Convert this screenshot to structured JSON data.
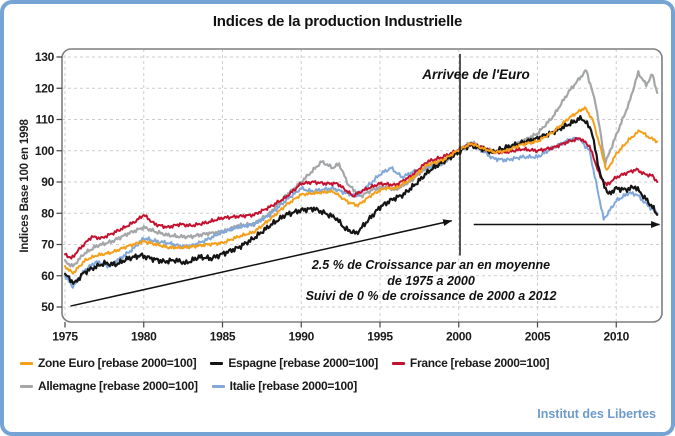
{
  "title": "Indices de la production Industrielle",
  "footer": {
    "text": "Institut des Libertes"
  },
  "colors": {
    "frame_border": "#75A3D3",
    "plot_border": "#7F7F7F",
    "gridline": "#CDCDCD",
    "tick": "#444444",
    "annotation": "#111111",
    "footer_text": "#6D9BCB"
  },
  "chart_data": {
    "type": "line",
    "title": "Indices de la production Industrielle",
    "xlabel": "",
    "ylabel": "Indices Base 100 en 1998",
    "xlim": [
      1974.8,
      2012.9
    ],
    "ylim": [
      50,
      130
    ],
    "x_ticks": [
      1975,
      1980,
      1985,
      1990,
      1995,
      2000,
      2005,
      2010
    ],
    "y_ticks": [
      50,
      60,
      70,
      80,
      90,
      100,
      110,
      120,
      130
    ],
    "grid": "dashed",
    "legend_position": "bottom",
    "legend_rows": [
      [
        0,
        1,
        2
      ],
      [
        3,
        4
      ]
    ],
    "annotations": {
      "euro_label": "Arrivee de l'Euro",
      "euro_line_year": 2000.08,
      "euro_line_values": [
        131,
        66.5
      ],
      "growth_lines": [
        "2.5 % de Croissance par an en moyenne",
        "de 1975  a 2000",
        "Suivi de 0 % de croissance de  2000 a 2012"
      ],
      "arrows": [
        {
          "from": [
            1975.35,
            50.3
          ],
          "to": [
            1999.55,
            77.6
          ]
        },
        {
          "from": [
            2000.95,
            76.4
          ],
          "to": [
            2012.75,
            76.4
          ]
        }
      ]
    },
    "series": [
      {
        "key": "zone-euro",
        "name": "Zone Euro [rebase 2000=100]",
        "color": "#F5A01B",
        "z": 5,
        "jitter": 0.55,
        "points": [
          [
            1975.0,
            63
          ],
          [
            1975.5,
            60.8
          ],
          [
            1976.3,
            65
          ],
          [
            1977,
            66.5
          ],
          [
            1978,
            67.5
          ],
          [
            1979,
            69.5
          ],
          [
            1980,
            71
          ],
          [
            1980.8,
            70
          ],
          [
            1981.6,
            69
          ],
          [
            1982.4,
            69
          ],
          [
            1983.2,
            69.4
          ],
          [
            1984,
            70
          ],
          [
            1985,
            70.5
          ],
          [
            1986,
            72.5
          ],
          [
            1987,
            74
          ],
          [
            1988,
            78
          ],
          [
            1989,
            82.5
          ],
          [
            1990,
            86
          ],
          [
            1991,
            86.5
          ],
          [
            1992,
            87
          ],
          [
            1993,
            83.5
          ],
          [
            1993.6,
            82.5
          ],
          [
            1994.5,
            86
          ],
          [
            1995.3,
            88
          ],
          [
            1996,
            88
          ],
          [
            1997,
            91
          ],
          [
            1998,
            95.5
          ],
          [
            1999,
            97
          ],
          [
            2000,
            100.3
          ],
          [
            2000.8,
            102.3
          ],
          [
            2001.5,
            100.8
          ],
          [
            2002.3,
            99.5
          ],
          [
            2003,
            100
          ],
          [
            2004,
            102
          ],
          [
            2005,
            103
          ],
          [
            2006,
            106
          ],
          [
            2007,
            110.5
          ],
          [
            2008,
            113.8
          ],
          [
            2008.5,
            110
          ],
          [
            2009.4,
            93.5
          ],
          [
            2010,
            99
          ],
          [
            2010.8,
            103.5
          ],
          [
            2011.5,
            106.5
          ],
          [
            2012,
            104.5
          ],
          [
            2012.6,
            103
          ]
        ]
      },
      {
        "key": "espagne",
        "name": "Espagne [rebase 2000=100]",
        "color": "#141414",
        "z": 4,
        "jitter": 0.95,
        "points": [
          [
            1975,
            60.5
          ],
          [
            1975.6,
            57.5
          ],
          [
            1976.2,
            61
          ],
          [
            1976.8,
            62.5
          ],
          [
            1977.5,
            64
          ],
          [
            1978.2,
            63.5
          ],
          [
            1979,
            65.5
          ],
          [
            1979.8,
            66.5
          ],
          [
            1980.5,
            65.5
          ],
          [
            1981.3,
            64.5
          ],
          [
            1982,
            65
          ],
          [
            1982.7,
            64
          ],
          [
            1983.5,
            66
          ],
          [
            1984.3,
            65.5
          ],
          [
            1985,
            67
          ],
          [
            1986,
            69
          ],
          [
            1987,
            72
          ],
          [
            1988,
            76
          ],
          [
            1989,
            79.5
          ],
          [
            1990,
            81
          ],
          [
            1990.8,
            81.5
          ],
          [
            1991.5,
            80
          ],
          [
            1992.2,
            78.5
          ],
          [
            1992.8,
            75
          ],
          [
            1993.5,
            73.5
          ],
          [
            1994.2,
            77.5
          ],
          [
            1995,
            82
          ],
          [
            1995.8,
            84.5
          ],
          [
            1996.5,
            86
          ],
          [
            1997.3,
            89.5
          ],
          [
            1998.1,
            93.5
          ],
          [
            1999,
            96.5
          ],
          [
            2000,
            99.5
          ],
          [
            2000.7,
            102
          ],
          [
            2001.5,
            100.5
          ],
          [
            2002.2,
            99.5
          ],
          [
            2003,
            101
          ],
          [
            2004,
            102.5
          ],
          [
            2005,
            104
          ],
          [
            2006,
            106
          ],
          [
            2007,
            108.5
          ],
          [
            2007.8,
            110.5
          ],
          [
            2008.4,
            107
          ],
          [
            2009,
            92
          ],
          [
            2009.5,
            86
          ],
          [
            2010,
            88
          ],
          [
            2010.6,
            87.5
          ],
          [
            2011.2,
            88.5
          ],
          [
            2011.8,
            85
          ],
          [
            2012.3,
            82
          ],
          [
            2012.6,
            79.5
          ]
        ]
      },
      {
        "key": "france",
        "name": "France [rebase 2000=100]",
        "color": "#C31230",
        "z": 3,
        "jitter": 0.6,
        "points": [
          [
            1975,
            67
          ],
          [
            1975.4,
            65.5
          ],
          [
            1976,
            69
          ],
          [
            1976.7,
            72.5
          ],
          [
            1977.3,
            72
          ],
          [
            1978,
            73.5
          ],
          [
            1978.8,
            75.5
          ],
          [
            1979.5,
            77.5
          ],
          [
            1980,
            79.5
          ],
          [
            1980.7,
            76.5
          ],
          [
            1981.5,
            75.5
          ],
          [
            1982.3,
            76.5
          ],
          [
            1983,
            76
          ],
          [
            1984,
            77
          ],
          [
            1985,
            78.5
          ],
          [
            1986,
            79
          ],
          [
            1987,
            79.5
          ],
          [
            1988,
            82
          ],
          [
            1989,
            85
          ],
          [
            1990,
            89.5
          ],
          [
            1990.8,
            90
          ],
          [
            1991.5,
            89.5
          ],
          [
            1992.3,
            89.5
          ],
          [
            1993.3,
            85.5
          ],
          [
            1994,
            87.5
          ],
          [
            1995,
            89.5
          ],
          [
            1996,
            89
          ],
          [
            1997,
            92
          ],
          [
            1998,
            96.5
          ],
          [
            1999,
            98
          ],
          [
            2000,
            100.3
          ],
          [
            2000.8,
            102.3
          ],
          [
            2001.5,
            101
          ],
          [
            2002.3,
            99.5
          ],
          [
            2003,
            99.5
          ],
          [
            2004,
            100.5
          ],
          [
            2005,
            100
          ],
          [
            2006,
            101
          ],
          [
            2007,
            103
          ],
          [
            2007.7,
            104
          ],
          [
            2008.3,
            101.5
          ],
          [
            2009,
            91.5
          ],
          [
            2009.4,
            89
          ],
          [
            2010,
            91.5
          ],
          [
            2010.7,
            93
          ],
          [
            2011.3,
            94
          ],
          [
            2011.8,
            92.5
          ],
          [
            2012.3,
            92
          ],
          [
            2012.6,
            90
          ]
        ]
      },
      {
        "key": "allemagne",
        "name": "Allemagne [rebase 2000=100]",
        "color": "#A4A6A8",
        "z": 1,
        "jitter": 0.65,
        "points": [
          [
            1975,
            64.5
          ],
          [
            1975.5,
            63
          ],
          [
            1976.2,
            67
          ],
          [
            1977,
            69.5
          ],
          [
            1978,
            71
          ],
          [
            1979,
            73.5
          ],
          [
            1980,
            75.5
          ],
          [
            1980.8,
            74
          ],
          [
            1981.5,
            73
          ],
          [
            1982.3,
            72.5
          ],
          [
            1983,
            72.5
          ],
          [
            1984,
            73.5
          ],
          [
            1985,
            74
          ],
          [
            1986,
            76
          ],
          [
            1987,
            76.5
          ],
          [
            1988,
            80
          ],
          [
            1989,
            85.5
          ],
          [
            1990,
            90
          ],
          [
            1990.7,
            93.5
          ],
          [
            1991.3,
            96.5
          ],
          [
            1992,
            94.5
          ],
          [
            1992.4,
            95.8
          ],
          [
            1993,
            89
          ],
          [
            1993.8,
            85.5
          ],
          [
            1994.5,
            87.5
          ],
          [
            1995.3,
            88.5
          ],
          [
            1996,
            87.5
          ],
          [
            1997,
            90.5
          ],
          [
            1998,
            95
          ],
          [
            1999,
            96
          ],
          [
            2000,
            100
          ],
          [
            2000.8,
            102.8
          ],
          [
            2001.5,
            101
          ],
          [
            2002.3,
            99.5
          ],
          [
            2003,
            100.5
          ],
          [
            2004,
            103
          ],
          [
            2005,
            105.5
          ],
          [
            2006,
            111
          ],
          [
            2007,
            119
          ],
          [
            2008.1,
            125.8
          ],
          [
            2008.7,
            115
          ],
          [
            2009.3,
            96
          ],
          [
            2010,
            105
          ],
          [
            2010.8,
            115
          ],
          [
            2011.4,
            125
          ],
          [
            2011.9,
            121
          ],
          [
            2012.3,
            124.5
          ],
          [
            2012.6,
            118.5
          ]
        ]
      },
      {
        "key": "italie",
        "name": "Italie [rebase 2000=100]",
        "color": "#82A8D9",
        "z": 2,
        "jitter": 0.7,
        "points": [
          [
            1975,
            60
          ],
          [
            1975.5,
            56.5
          ],
          [
            1976.3,
            62
          ],
          [
            1977,
            64.5
          ],
          [
            1977.7,
            63
          ],
          [
            1978.5,
            65.5
          ],
          [
            1979.3,
            68.5
          ],
          [
            1980,
            72
          ],
          [
            1980.8,
            71
          ],
          [
            1981.5,
            70.5
          ],
          [
            1982.3,
            69.5
          ],
          [
            1983,
            69.5
          ],
          [
            1984,
            71.5
          ],
          [
            1985,
            74
          ],
          [
            1986,
            75.5
          ],
          [
            1987,
            76.5
          ],
          [
            1988,
            79.5
          ],
          [
            1989,
            84
          ],
          [
            1990,
            88
          ],
          [
            1990.6,
            87
          ],
          [
            1991.3,
            87.5
          ],
          [
            1992,
            88
          ],
          [
            1992.8,
            86.5
          ],
          [
            1993.5,
            85.5
          ],
          [
            1994.3,
            89
          ],
          [
            1995,
            92.5
          ],
          [
            1995.7,
            94.5
          ],
          [
            1996.4,
            91.5
          ],
          [
            1997.2,
            93.5
          ],
          [
            1998,
            94.5
          ],
          [
            1999,
            96
          ],
          [
            2000,
            100
          ],
          [
            2000.8,
            101.8
          ],
          [
            2001.5,
            100
          ],
          [
            2002.2,
            97.5
          ],
          [
            2003,
            97
          ],
          [
            2004,
            98
          ],
          [
            2005,
            98
          ],
          [
            2006,
            101
          ],
          [
            2007,
            103.5
          ],
          [
            2007.6,
            104
          ],
          [
            2008.3,
            100
          ],
          [
            2009.2,
            78
          ],
          [
            2010,
            84
          ],
          [
            2010.8,
            86.5
          ],
          [
            2011.3,
            86
          ],
          [
            2012,
            82.5
          ],
          [
            2012.6,
            80
          ]
        ]
      }
    ]
  }
}
